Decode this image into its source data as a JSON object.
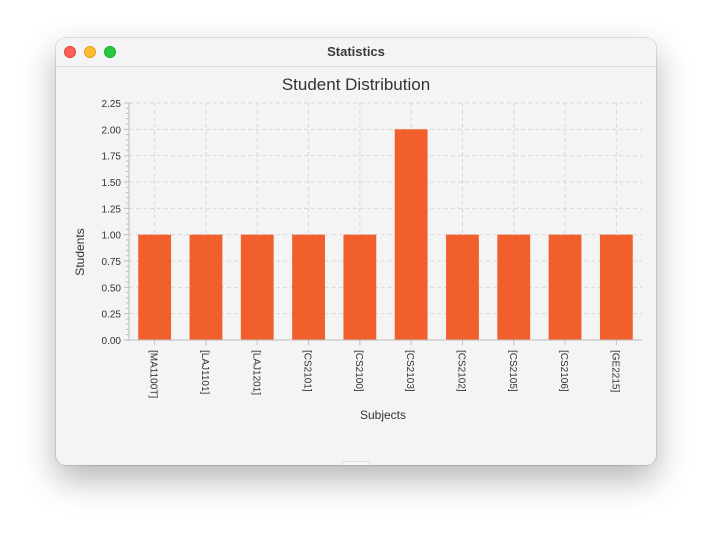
{
  "window": {
    "title": "Statistics"
  },
  "chart_data": {
    "type": "bar",
    "title": "Student Distribution",
    "xlabel": "Subjects",
    "ylabel": "Students",
    "categories": [
      "[MA1100T]",
      "[LAJ1101]",
      "[LAJ1201]",
      "[CS2101]",
      "[CS2100]",
      "[CS2103]",
      "[CS2102]",
      "[CS2105]",
      "[CS2106]",
      "[GE2215]"
    ],
    "series": [
      {
        "values": [
          1,
          1,
          1,
          1,
          1,
          2,
          1,
          1,
          1,
          1
        ]
      }
    ],
    "ylim": [
      0,
      2.25
    ],
    "yticks": [
      "0.00",
      "0.25",
      "0.50",
      "0.75",
      "1.00",
      "1.25",
      "1.50",
      "1.75",
      "2.00",
      "2.25"
    ],
    "grid": true,
    "legend_position": "bottom-center",
    "colors": {
      "bar": "#f15f2c",
      "grid": "#d8d8d8",
      "axis": "#bdbdbd",
      "text": "#333333"
    }
  }
}
